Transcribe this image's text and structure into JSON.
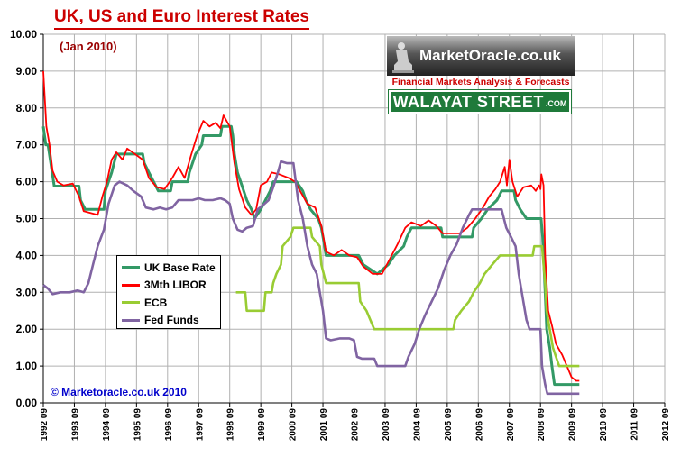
{
  "header": {
    "title": "UK, US and Euro Interest Rates",
    "subtitle": "(Jan 2010)"
  },
  "logo": {
    "name": "MarketOracle.co.uk",
    "tagline": "Financial Markets Analysis & Forecasts",
    "street": "WALAYAT STREET",
    "street_suffix": ".COM"
  },
  "footer": {
    "copyright": "© Marketoracle.co.uk 2010"
  },
  "chart_data": {
    "type": "line",
    "title": "UK, US and Euro Interest Rates",
    "subtitle": "(Jan 2010)",
    "xlabel": "",
    "ylabel": "",
    "xlim": [
      1992.75,
      2012.75
    ],
    "ylim": [
      0,
      10
    ],
    "grid": true,
    "legend_position": "lower-left",
    "y_ticks": [
      "0.00",
      "1.00",
      "2.00",
      "3.00",
      "4.00",
      "5.00",
      "6.00",
      "7.00",
      "8.00",
      "9.00",
      "10.00"
    ],
    "x_ticks": [
      "1992 09",
      "1993 09",
      "1994 09",
      "1995 09",
      "1996 09",
      "1997 09",
      "1998 09",
      "1999 09",
      "2000 09",
      "2001 09",
      "2002 09",
      "2003 09",
      "2004 09",
      "2005 09",
      "2006 09",
      "2007 09",
      "2008 09",
      "2009 09",
      "2010 09",
      "2011 09",
      "2012 09"
    ],
    "series": [
      {
        "name": "UK Base Rate",
        "color": "#339966",
        "points": [
          [
            1992.75,
            7.5
          ],
          [
            1992.83,
            7.0
          ],
          [
            1992.9,
            7.0
          ],
          [
            1993.08,
            6.0
          ],
          [
            1993.1,
            5.88
          ],
          [
            1993.9,
            5.88
          ],
          [
            1993.95,
            5.5
          ],
          [
            1994.1,
            5.25
          ],
          [
            1994.7,
            5.25
          ],
          [
            1994.75,
            5.75
          ],
          [
            1994.95,
            6.25
          ],
          [
            1995.1,
            6.75
          ],
          [
            1995.95,
            6.75
          ],
          [
            1996.0,
            6.5
          ],
          [
            1996.15,
            6.25
          ],
          [
            1996.3,
            6.0
          ],
          [
            1996.45,
            5.75
          ],
          [
            1996.85,
            5.75
          ],
          [
            1996.9,
            6.0
          ],
          [
            1997.4,
            6.0
          ],
          [
            1997.45,
            6.25
          ],
          [
            1997.55,
            6.5
          ],
          [
            1997.65,
            6.75
          ],
          [
            1997.85,
            7.0
          ],
          [
            1997.9,
            7.25
          ],
          [
            1998.45,
            7.25
          ],
          [
            1998.5,
            7.5
          ],
          [
            1998.8,
            7.5
          ],
          [
            1998.85,
            7.25
          ],
          [
            1998.9,
            6.75
          ],
          [
            1999.0,
            6.25
          ],
          [
            1999.1,
            6.0
          ],
          [
            1999.3,
            5.5
          ],
          [
            1999.45,
            5.25
          ],
          [
            1999.55,
            5.0
          ],
          [
            1999.75,
            5.25
          ],
          [
            1999.9,
            5.5
          ],
          [
            2000.05,
            5.75
          ],
          [
            2000.15,
            6.0
          ],
          [
            2000.9,
            6.0
          ],
          [
            2001.1,
            5.75
          ],
          [
            2001.2,
            5.5
          ],
          [
            2001.35,
            5.25
          ],
          [
            2001.6,
            5.0
          ],
          [
            2001.7,
            4.75
          ],
          [
            2001.75,
            4.5
          ],
          [
            2001.85,
            4.0
          ],
          [
            2002.9,
            4.0
          ],
          [
            2003.05,
            3.75
          ],
          [
            2003.5,
            3.5
          ],
          [
            2003.85,
            3.75
          ],
          [
            2004.05,
            4.0
          ],
          [
            2004.35,
            4.25
          ],
          [
            2004.45,
            4.5
          ],
          [
            2004.6,
            4.75
          ],
          [
            2005.55,
            4.75
          ],
          [
            2005.6,
            4.5
          ],
          [
            2006.55,
            4.5
          ],
          [
            2006.6,
            4.75
          ],
          [
            2006.85,
            5.0
          ],
          [
            2007.05,
            5.25
          ],
          [
            2007.35,
            5.5
          ],
          [
            2007.5,
            5.75
          ],
          [
            2007.9,
            5.75
          ],
          [
            2007.95,
            5.5
          ],
          [
            2008.1,
            5.25
          ],
          [
            2008.3,
            5.0
          ],
          [
            2008.77,
            5.0
          ],
          [
            2008.82,
            4.5
          ],
          [
            2008.9,
            3.0
          ],
          [
            2008.95,
            2.0
          ],
          [
            2009.05,
            1.5
          ],
          [
            2009.12,
            1.0
          ],
          [
            2009.2,
            0.5
          ],
          [
            2010.0,
            0.5
          ]
        ]
      },
      {
        "name": "3Mth LIBOR",
        "color": "#ff0000",
        "points": [
          [
            1992.75,
            9.0
          ],
          [
            1992.85,
            7.5
          ],
          [
            1992.95,
            7.0
          ],
          [
            1993.05,
            6.3
          ],
          [
            1993.2,
            6.0
          ],
          [
            1993.4,
            5.9
          ],
          [
            1993.7,
            5.95
          ],
          [
            1993.9,
            5.6
          ],
          [
            1994.05,
            5.2
          ],
          [
            1994.5,
            5.1
          ],
          [
            1994.65,
            5.6
          ],
          [
            1994.8,
            6.0
          ],
          [
            1994.95,
            6.6
          ],
          [
            1995.1,
            6.8
          ],
          [
            1995.3,
            6.6
          ],
          [
            1995.45,
            6.9
          ],
          [
            1995.7,
            6.75
          ],
          [
            1995.95,
            6.6
          ],
          [
            1996.15,
            6.1
          ],
          [
            1996.4,
            5.85
          ],
          [
            1996.65,
            5.8
          ],
          [
            1996.9,
            6.1
          ],
          [
            1997.1,
            6.4
          ],
          [
            1997.3,
            6.1
          ],
          [
            1997.5,
            6.7
          ],
          [
            1997.7,
            7.25
          ],
          [
            1997.9,
            7.65
          ],
          [
            1998.1,
            7.5
          ],
          [
            1998.3,
            7.6
          ],
          [
            1998.45,
            7.45
          ],
          [
            1998.55,
            7.8
          ],
          [
            1998.75,
            7.5
          ],
          [
            1998.9,
            6.5
          ],
          [
            1999.05,
            5.8
          ],
          [
            1999.25,
            5.3
          ],
          [
            1999.45,
            5.1
          ],
          [
            1999.6,
            5.25
          ],
          [
            1999.75,
            5.9
          ],
          [
            1999.95,
            6.0
          ],
          [
            2000.1,
            6.25
          ],
          [
            2000.35,
            6.2
          ],
          [
            2000.65,
            6.1
          ],
          [
            2000.85,
            6.0
          ],
          [
            2001.05,
            5.7
          ],
          [
            2001.25,
            5.4
          ],
          [
            2001.5,
            5.3
          ],
          [
            2001.7,
            4.8
          ],
          [
            2001.85,
            4.1
          ],
          [
            2002.1,
            4.0
          ],
          [
            2002.35,
            4.15
          ],
          [
            2002.6,
            4.0
          ],
          [
            2002.85,
            3.95
          ],
          [
            2003.05,
            3.7
          ],
          [
            2003.35,
            3.5
          ],
          [
            2003.65,
            3.5
          ],
          [
            2003.9,
            3.9
          ],
          [
            2004.15,
            4.3
          ],
          [
            2004.4,
            4.75
          ],
          [
            2004.6,
            4.9
          ],
          [
            2004.9,
            4.8
          ],
          [
            2005.15,
            4.95
          ],
          [
            2005.4,
            4.8
          ],
          [
            2005.6,
            4.6
          ],
          [
            2005.9,
            4.6
          ],
          [
            2006.15,
            4.6
          ],
          [
            2006.4,
            4.75
          ],
          [
            2006.65,
            5.0
          ],
          [
            2006.9,
            5.3
          ],
          [
            2007.1,
            5.6
          ],
          [
            2007.3,
            5.8
          ],
          [
            2007.45,
            6.0
          ],
          [
            2007.6,
            6.4
          ],
          [
            2007.67,
            5.9
          ],
          [
            2007.75,
            6.6
          ],
          [
            2007.85,
            6.0
          ],
          [
            2008.0,
            5.6
          ],
          [
            2008.2,
            5.85
          ],
          [
            2008.45,
            5.9
          ],
          [
            2008.6,
            5.75
          ],
          [
            2008.7,
            5.9
          ],
          [
            2008.75,
            5.8
          ],
          [
            2008.78,
            6.2
          ],
          [
            2008.85,
            5.9
          ],
          [
            2008.9,
            4.0
          ],
          [
            2009.0,
            2.5
          ],
          [
            2009.12,
            2.1
          ],
          [
            2009.25,
            1.6
          ],
          [
            2009.45,
            1.3
          ],
          [
            2009.6,
            1.0
          ],
          [
            2009.75,
            0.7
          ],
          [
            2009.9,
            0.6
          ],
          [
            2010.0,
            0.6
          ]
        ]
      },
      {
        "name": "ECB",
        "color": "#99cc33",
        "points": [
          [
            1998.95,
            3.0
          ],
          [
            1999.25,
            3.0
          ],
          [
            1999.3,
            2.5
          ],
          [
            1999.85,
            2.5
          ],
          [
            1999.9,
            3.0
          ],
          [
            2000.1,
            3.0
          ],
          [
            2000.15,
            3.25
          ],
          [
            2000.25,
            3.5
          ],
          [
            2000.4,
            3.75
          ],
          [
            2000.45,
            4.25
          ],
          [
            2000.7,
            4.5
          ],
          [
            2000.8,
            4.75
          ],
          [
            2001.35,
            4.75
          ],
          [
            2001.4,
            4.5
          ],
          [
            2001.65,
            4.25
          ],
          [
            2001.7,
            3.75
          ],
          [
            2001.85,
            3.25
          ],
          [
            2002.9,
            3.25
          ],
          [
            2002.95,
            2.75
          ],
          [
            2003.15,
            2.5
          ],
          [
            2003.4,
            2.0
          ],
          [
            2005.95,
            2.0
          ],
          [
            2006.0,
            2.25
          ],
          [
            2006.2,
            2.5
          ],
          [
            2006.45,
            2.75
          ],
          [
            2006.6,
            3.0
          ],
          [
            2006.8,
            3.25
          ],
          [
            2006.95,
            3.5
          ],
          [
            2007.2,
            3.75
          ],
          [
            2007.45,
            4.0
          ],
          [
            2008.5,
            4.0
          ],
          [
            2008.55,
            4.25
          ],
          [
            2008.8,
            4.25
          ],
          [
            2008.85,
            3.75
          ],
          [
            2008.9,
            3.25
          ],
          [
            2008.95,
            2.5
          ],
          [
            2009.05,
            2.0
          ],
          [
            2009.15,
            1.5
          ],
          [
            2009.25,
            1.25
          ],
          [
            2009.35,
            1.0
          ],
          [
            2010.0,
            1.0
          ]
        ]
      },
      {
        "name": "Fed Funds",
        "color": "#8064a2",
        "points": [
          [
            1992.75,
            3.2
          ],
          [
            1992.9,
            3.1
          ],
          [
            1993.05,
            2.95
          ],
          [
            1993.3,
            3.0
          ],
          [
            1993.6,
            3.0
          ],
          [
            1993.85,
            3.05
          ],
          [
            1994.05,
            3.0
          ],
          [
            1994.2,
            3.25
          ],
          [
            1994.35,
            3.75
          ],
          [
            1994.5,
            4.25
          ],
          [
            1994.7,
            4.7
          ],
          [
            1994.85,
            5.4
          ],
          [
            1995.05,
            5.9
          ],
          [
            1995.2,
            6.0
          ],
          [
            1995.45,
            5.9
          ],
          [
            1995.65,
            5.75
          ],
          [
            1995.9,
            5.6
          ],
          [
            1996.05,
            5.3
          ],
          [
            1996.3,
            5.25
          ],
          [
            1996.5,
            5.3
          ],
          [
            1996.7,
            5.25
          ],
          [
            1996.9,
            5.3
          ],
          [
            1997.1,
            5.5
          ],
          [
            1997.3,
            5.5
          ],
          [
            1997.55,
            5.5
          ],
          [
            1997.75,
            5.55
          ],
          [
            1997.95,
            5.5
          ],
          [
            1998.2,
            5.5
          ],
          [
            1998.45,
            5.55
          ],
          [
            1998.6,
            5.5
          ],
          [
            1998.75,
            5.4
          ],
          [
            1998.85,
            5.0
          ],
          [
            1999.0,
            4.7
          ],
          [
            1999.15,
            4.65
          ],
          [
            1999.3,
            4.75
          ],
          [
            1999.5,
            4.8
          ],
          [
            1999.65,
            5.25
          ],
          [
            1999.8,
            5.35
          ],
          [
            2000.0,
            5.5
          ],
          [
            2000.15,
            5.85
          ],
          [
            2000.3,
            6.25
          ],
          [
            2000.4,
            6.55
          ],
          [
            2000.6,
            6.5
          ],
          [
            2000.8,
            6.5
          ],
          [
            2000.95,
            5.5
          ],
          [
            2001.1,
            5.0
          ],
          [
            2001.25,
            4.25
          ],
          [
            2001.4,
            3.75
          ],
          [
            2001.55,
            3.5
          ],
          [
            2001.65,
            3.0
          ],
          [
            2001.75,
            2.5
          ],
          [
            2001.85,
            1.75
          ],
          [
            2002.0,
            1.7
          ],
          [
            2002.3,
            1.75
          ],
          [
            2002.6,
            1.75
          ],
          [
            2002.75,
            1.7
          ],
          [
            2002.85,
            1.25
          ],
          [
            2003.0,
            1.2
          ],
          [
            2003.4,
            1.2
          ],
          [
            2003.5,
            1.0
          ],
          [
            2004.4,
            1.0
          ],
          [
            2004.5,
            1.25
          ],
          [
            2004.7,
            1.6
          ],
          [
            2004.85,
            2.0
          ],
          [
            2005.05,
            2.4
          ],
          [
            2005.25,
            2.75
          ],
          [
            2005.45,
            3.1
          ],
          [
            2005.65,
            3.6
          ],
          [
            2005.85,
            4.0
          ],
          [
            2006.05,
            4.3
          ],
          [
            2006.25,
            4.75
          ],
          [
            2006.45,
            5.1
          ],
          [
            2006.55,
            5.25
          ],
          [
            2007.5,
            5.25
          ],
          [
            2007.65,
            4.75
          ],
          [
            2007.8,
            4.5
          ],
          [
            2007.95,
            4.25
          ],
          [
            2008.05,
            3.5
          ],
          [
            2008.15,
            3.0
          ],
          [
            2008.3,
            2.25
          ],
          [
            2008.4,
            2.0
          ],
          [
            2008.75,
            2.0
          ],
          [
            2008.8,
            1.0
          ],
          [
            2008.9,
            0.5
          ],
          [
            2008.97,
            0.25
          ],
          [
            2010.0,
            0.25
          ]
        ]
      }
    ]
  }
}
